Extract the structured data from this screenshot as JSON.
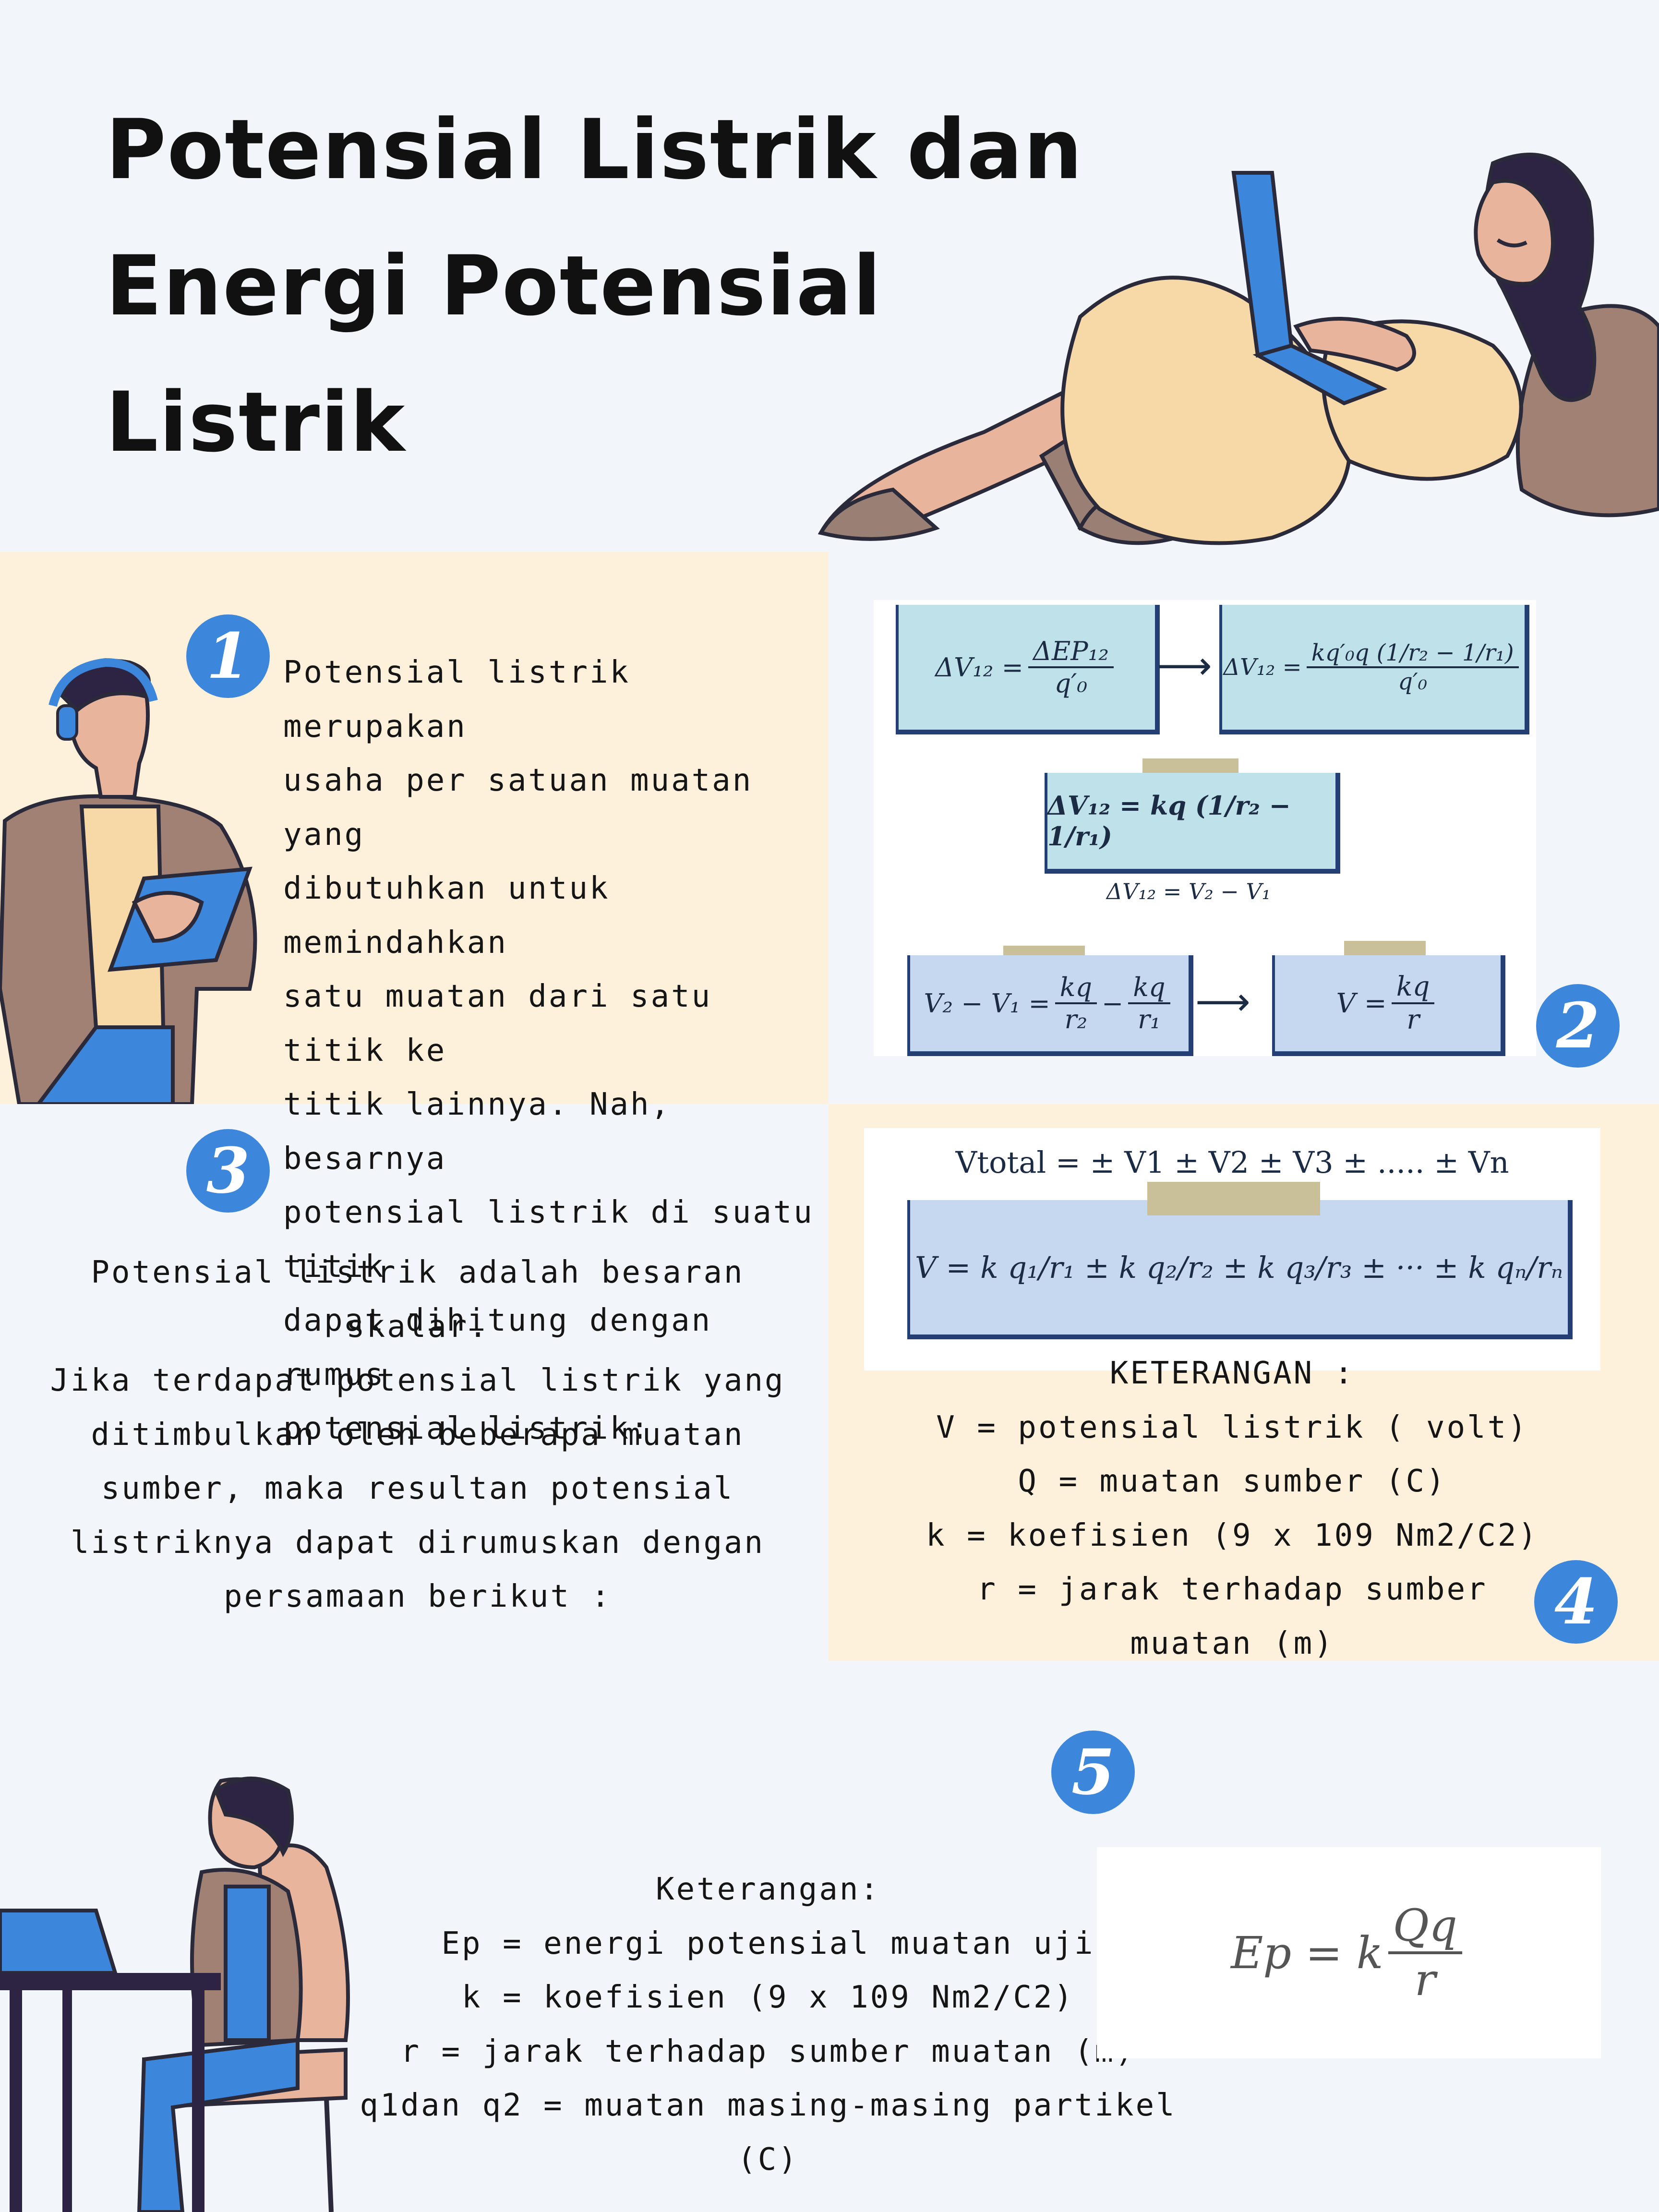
{
  "title": {
    "line1": "Potensial Listrik dan",
    "line2": "Energi Potensial",
    "line3": "Listrik"
  },
  "badges": {
    "b1": "1",
    "b2": "2",
    "b3": "3",
    "b4": "4",
    "b5": "5"
  },
  "section1": {
    "lines": [
      "Potensial listrik merupakan",
      "usaha per satuan muatan yang",
      "dibutuhkan untuk memindahkan",
      "satu muatan dari satu titik ke",
      "titik lainnya. Nah, besarnya",
      "potensial listrik di suatu titik",
      "dapat dihitung dengan rumus",
      "potensial listrik:"
    ]
  },
  "section2": {
    "f1_lhs": "ΔV₁₂ =",
    "f1_num": "ΔEP₁₂",
    "f1_den": "q′₀",
    "f2_lhs": "ΔV₁₂ =",
    "f2_num": "kq′₀q (1/r₂ − 1/r₁)",
    "f2_den": "q′₀",
    "f3": "ΔV₁₂ = kq (1/r₂ − 1/r₁)",
    "f4": "ΔV₁₂ = V₂ − V₁",
    "f5_lhs": "V₂ − V₁ =",
    "f5_t1_num": "kq",
    "f5_t1_den": "r₂",
    "f5_op": "−",
    "f5_t2_num": "kq",
    "f5_t2_den": "r₁",
    "f6_lhs": "V =",
    "f6_num": "kq",
    "f6_den": "r"
  },
  "section3": {
    "lines": [
      "Potensial listrik adalah besaran skalar.",
      "Jika terdapat potensial listrik yang",
      "ditimbulkan oleh beberapa muatan",
      "sumber, maka resultan potensial",
      "listriknya dapat dirumuskan dengan",
      "persamaan berikut :"
    ]
  },
  "section4": {
    "vtotal": "Vtotal = ± V1 ± V2 ± V3 ± ..... ± Vn",
    "vsum": "V = k q₁/r₁ ± k q₂/r₂ ± k q₃/r₃ ± ··· ± k qₙ/rₙ",
    "heading": "KETERANGAN :",
    "lines": [
      "V = potensial listrik ( volt)",
      "Q = muatan sumber (C)",
      "k = koefisien (9 x 109 Nm2/C2)",
      "r = jarak terhadap sumber",
      "muatan (m)"
    ]
  },
  "section5": {
    "heading": "Keterangan:",
    "lines": [
      "Ep = energi potensial muatan uji",
      "k = koefisien (9 x 109 Nm2/C2)",
      "r = jarak terhadap sumber muatan (m)",
      "q1dan q2 = muatan masing-masing partikel (C)"
    ],
    "formula_lhs": "Ep = k",
    "formula_num": "Qq",
    "formula_den": "r"
  }
}
